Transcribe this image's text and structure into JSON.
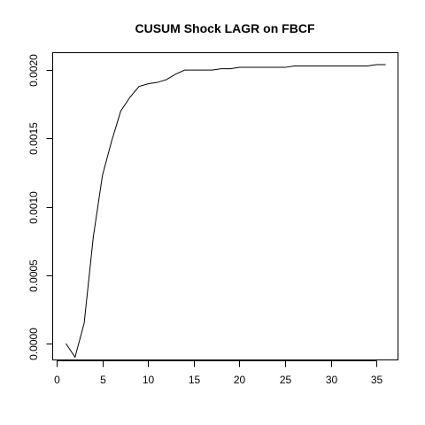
{
  "chart_data": {
    "type": "line",
    "title": "CUSUM Shock LAGR on FBCF",
    "xlabel": "",
    "ylabel": "",
    "xlim": [
      -0.4,
      37.4
    ],
    "ylim": [
      -0.000123,
      0.002124
    ],
    "xticks": [
      0,
      5,
      10,
      15,
      20,
      25,
      30,
      35
    ],
    "yticks": [
      0.0,
      0.0005,
      0.001,
      0.0015,
      0.002
    ],
    "yticklabels": [
      "0.0000",
      "0.0005",
      "0.0010",
      "0.0015",
      "0.0020"
    ],
    "grid": false,
    "legend": "none",
    "series": [
      {
        "color": "#000000",
        "x": [
          1,
          2,
          3,
          4,
          5,
          6,
          7,
          8,
          9,
          10,
          11,
          12,
          13,
          14,
          15,
          16,
          17,
          18,
          19,
          20,
          21,
          22,
          23,
          24,
          25,
          26,
          27,
          28,
          29,
          30,
          31,
          32,
          33,
          34,
          35,
          36
        ],
        "y": [
          0.0,
          -0.0001,
          0.00015,
          0.00078,
          0.00123,
          0.00148,
          0.0017,
          0.0018,
          0.00188,
          0.0019,
          0.00191,
          0.00193,
          0.00197,
          0.002,
          0.002,
          0.002,
          0.002,
          0.00201,
          0.00201,
          0.00202,
          0.00202,
          0.00202,
          0.00202,
          0.00202,
          0.00202,
          0.00203,
          0.00203,
          0.00203,
          0.00203,
          0.00203,
          0.00203,
          0.00203,
          0.00203,
          0.00203,
          0.00204,
          0.00204
        ]
      }
    ]
  }
}
